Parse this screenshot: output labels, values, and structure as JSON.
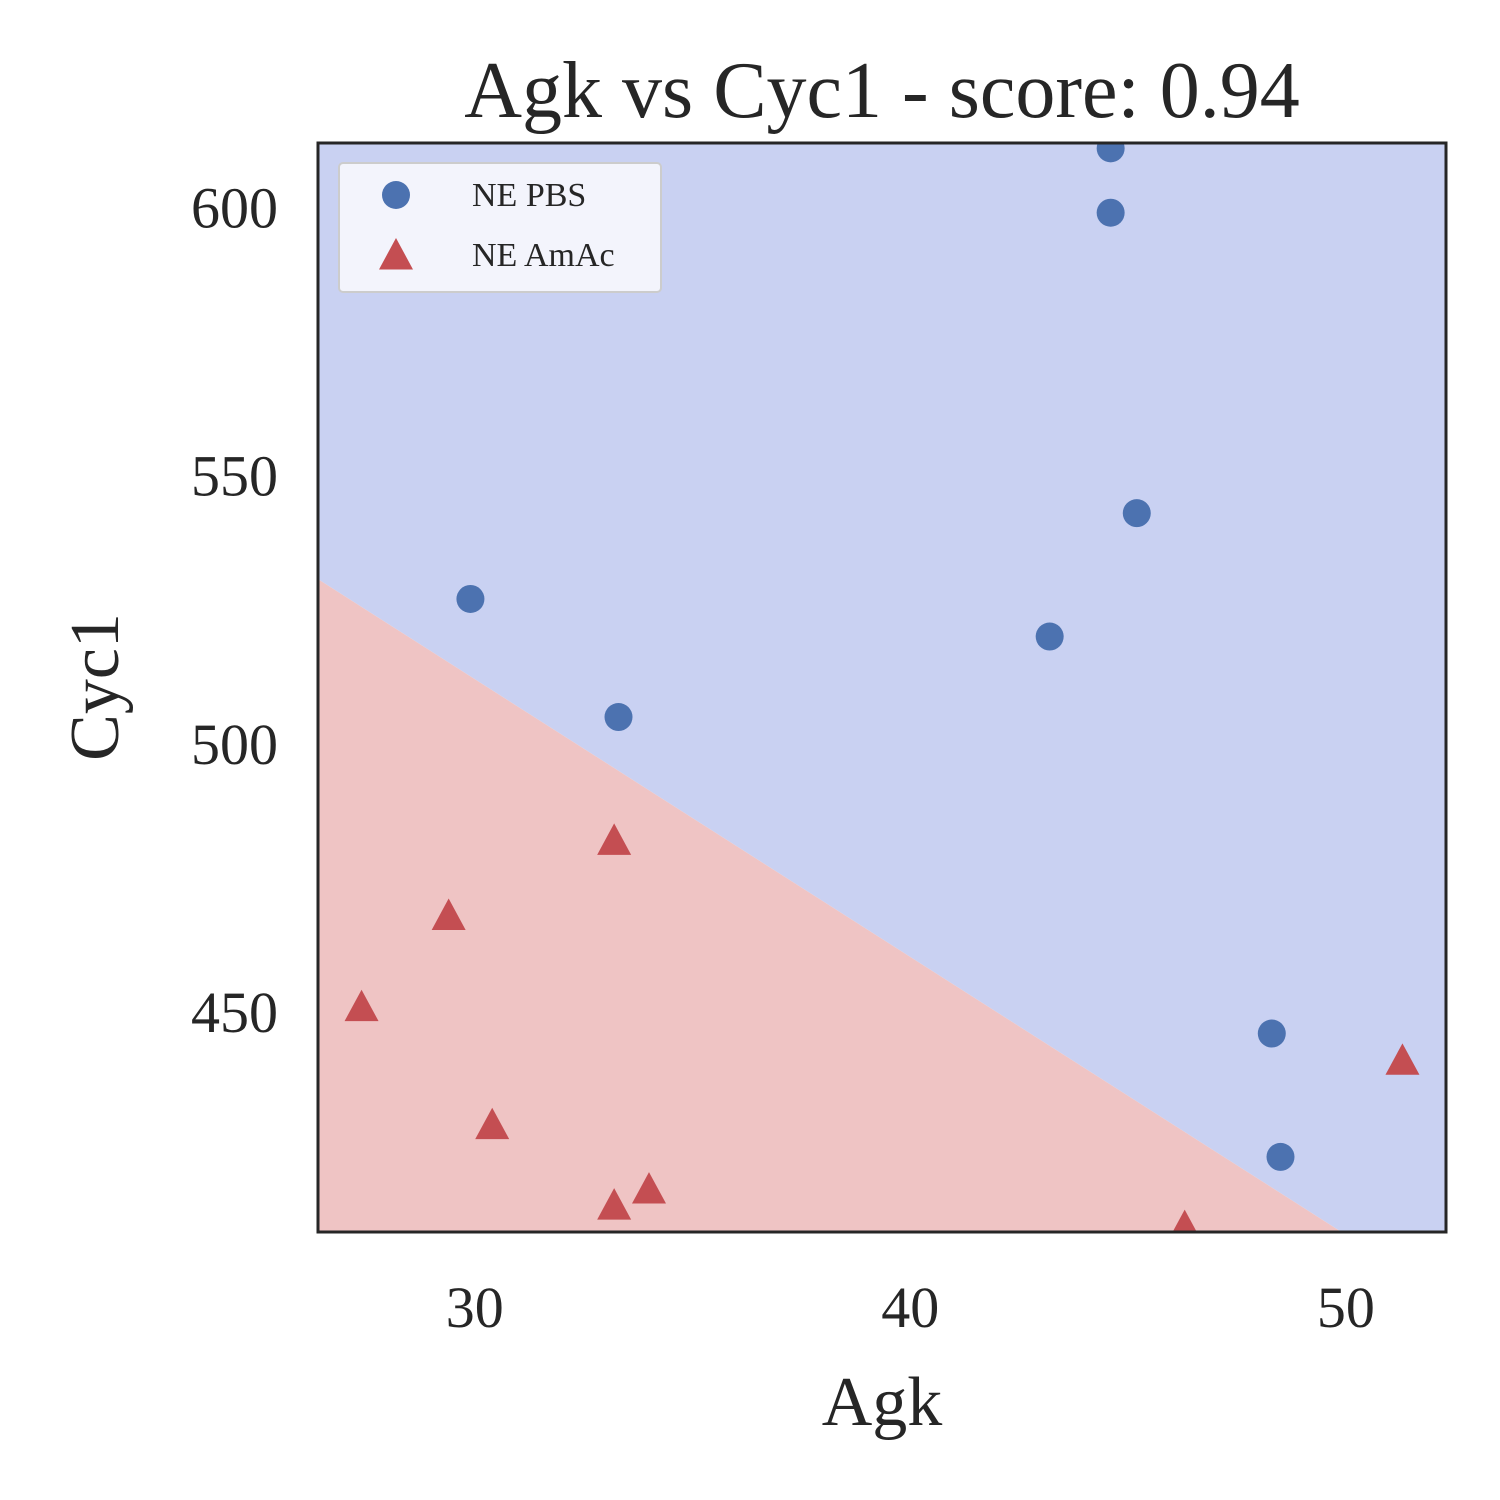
{
  "chart_data": {
    "type": "scatter",
    "title": "Agk vs Cyc1 - score: 0.94",
    "xlabel": "Agk",
    "ylabel": "Cyc1",
    "xlim": [
      26.4,
      52.3
    ],
    "ylim": [
      409,
      612
    ],
    "xticks": [
      30,
      40,
      50
    ],
    "yticks": [
      450,
      500,
      550,
      600
    ],
    "grid": false,
    "legend_position": "upper-left",
    "decision_boundary": {
      "points": [
        [
          26.4,
          530.7
        ],
        [
          49.9,
          409
        ]
      ],
      "lower_region_color": "#efc4c4",
      "upper_region_color": "#c9d1f2",
      "lower_region_class": "NE AmAc",
      "upper_region_class": "NE PBS"
    },
    "series": [
      {
        "name": "NE PBS",
        "marker": "circle",
        "color": "#4c72b0",
        "points": [
          [
            44.6,
            611
          ],
          [
            44.6,
            599
          ],
          [
            45.2,
            543
          ],
          [
            29.9,
            527
          ],
          [
            43.2,
            520
          ],
          [
            33.3,
            505
          ],
          [
            48.3,
            446
          ],
          [
            48.5,
            423
          ]
        ]
      },
      {
        "name": "NE AmAc",
        "marker": "triangle",
        "color": "#c44e52",
        "points": [
          [
            33.2,
            482
          ],
          [
            29.4,
            468
          ],
          [
            27.4,
            451
          ],
          [
            30.4,
            429
          ],
          [
            34.0,
            417
          ],
          [
            33.2,
            414
          ],
          [
            46.3,
            410
          ],
          [
            51.3,
            441
          ]
        ]
      }
    ]
  }
}
